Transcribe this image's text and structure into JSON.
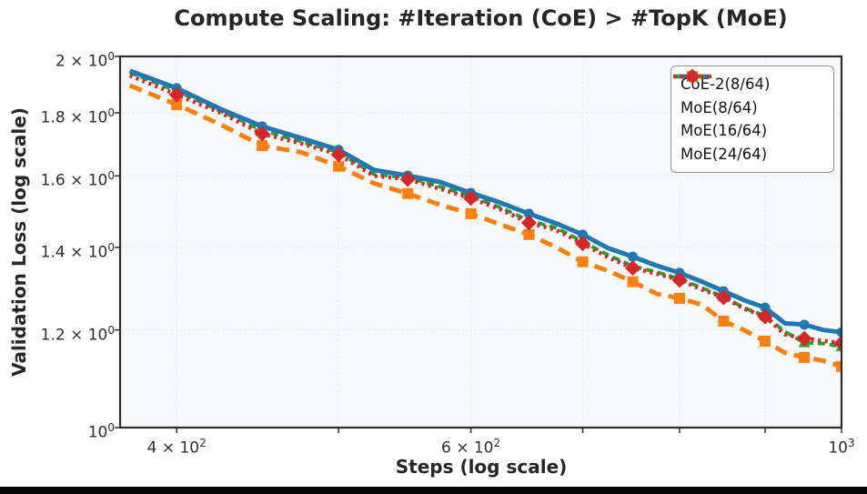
{
  "chart_data": {
    "type": "line",
    "title": "Compute Scaling: #Iteration (CoE) > #TopK (MoE)",
    "xlabel": "Steps (log scale)",
    "ylabel": "Validation Loss (log scale)",
    "xscale": "log",
    "yscale": "log",
    "xlim": [
      370,
      1000
    ],
    "ylim": [
      1.0,
      2.0
    ],
    "grid": true,
    "legend_position": "upper right",
    "marker_every": 2,
    "marker_start": 1,
    "x": [
      375,
      400,
      425,
      450,
      475,
      500,
      525,
      550,
      575,
      600,
      625,
      650,
      675,
      700,
      725,
      750,
      775,
      800,
      825,
      850,
      875,
      900,
      925,
      950,
      975,
      1000
    ],
    "series": [
      {
        "name": "CoE-2(8/64)",
        "color": "#ff7f0e",
        "linestyle": "dashed",
        "marker": "square",
        "values": [
          1.894,
          1.828,
          1.761,
          1.693,
          1.672,
          1.629,
          1.578,
          1.548,
          1.516,
          1.491,
          1.461,
          1.434,
          1.4,
          1.363,
          1.34,
          1.313,
          1.284,
          1.273,
          1.258,
          1.22,
          1.199,
          1.175,
          1.15,
          1.14,
          1.133,
          1.121
        ]
      },
      {
        "name": "MoE(8/64)",
        "color": "#1f77b4",
        "linestyle": "solid",
        "marker": "circle",
        "values": [
          1.947,
          1.885,
          1.813,
          1.755,
          1.717,
          1.68,
          1.618,
          1.601,
          1.582,
          1.55,
          1.522,
          1.491,
          1.464,
          1.434,
          1.398,
          1.376,
          1.353,
          1.335,
          1.313,
          1.29,
          1.268,
          1.251,
          1.215,
          1.212,
          1.2,
          1.195
        ]
      },
      {
        "name": "MoE(16/64)",
        "color": "#2ca02c",
        "linestyle": "dashed-short",
        "marker": "triangle",
        "values": [
          1.94,
          1.875,
          1.806,
          1.742,
          1.706,
          1.672,
          1.605,
          1.595,
          1.568,
          1.54,
          1.508,
          1.472,
          1.452,
          1.415,
          1.38,
          1.352,
          1.337,
          1.32,
          1.298,
          1.277,
          1.25,
          1.232,
          1.196,
          1.172,
          1.17,
          1.163
        ]
      },
      {
        "name": "MoE(24/64)",
        "color": "#d62728",
        "linestyle": "dotted",
        "marker": "diamond",
        "values": [
          1.93,
          1.862,
          1.8,
          1.731,
          1.7,
          1.665,
          1.6,
          1.59,
          1.562,
          1.535,
          1.503,
          1.466,
          1.446,
          1.41,
          1.374,
          1.347,
          1.333,
          1.317,
          1.294,
          1.275,
          1.248,
          1.23,
          1.19,
          1.181,
          1.176,
          1.171
        ]
      }
    ],
    "xticks": [
      {
        "base": "4 × 10",
        "exp": "2",
        "value": 400
      },
      {
        "base": "6 × 10",
        "exp": "2",
        "value": 600
      },
      {
        "base": "10",
        "exp": "3",
        "value": 1000
      }
    ],
    "yticks": [
      {
        "base": "2 × 10",
        "exp": "0",
        "value": 2.0
      },
      {
        "base": "1.8 × 10",
        "exp": "0",
        "value": 1.8
      },
      {
        "base": "1.6 × 10",
        "exp": "0",
        "value": 1.6
      },
      {
        "base": "1.4 × 10",
        "exp": "0",
        "value": 1.4
      },
      {
        "base": "1.2 × 10",
        "exp": "0",
        "value": 1.2
      },
      {
        "base": "10",
        "exp": "0",
        "value": 1.0
      }
    ],
    "xgrid": [
      400,
      500,
      600,
      700,
      800,
      900,
      1000
    ],
    "ygrid": [
      1.2,
      1.4,
      1.6,
      1.8,
      2.0
    ],
    "colors": {
      "plot_background": "#f7f8fa",
      "gridline": "#e2e3e8",
      "spine": "#2d2d2d",
      "text": "#262626"
    }
  }
}
